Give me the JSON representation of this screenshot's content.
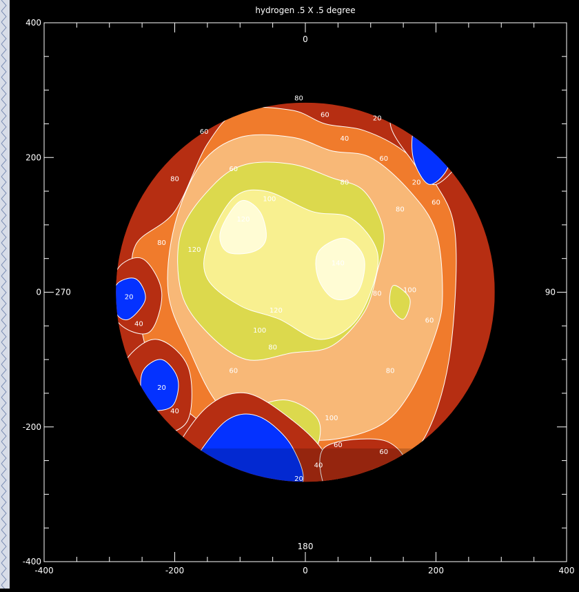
{
  "chart_data": {
    "type": "heatmap",
    "title": "hydrogen .5 X .5 degree",
    "xlim": [
      -400,
      400
    ],
    "ylim": [
      -400,
      400
    ],
    "xticks": [
      -400,
      -200,
      0,
      200,
      400
    ],
    "yticks": [
      -400,
      -200,
      0,
      200,
      400
    ],
    "grid": false,
    "direction_labels": {
      "top": "0",
      "bottom": "180",
      "left": "270",
      "right": "90"
    },
    "disk_radius": 290,
    "contour_levels": [
      20,
      40,
      60,
      80,
      100,
      120,
      140
    ],
    "color_scale": {
      "lt20": "#00219e",
      "20_40": "#0432ff",
      "40_60": "#b62e12",
      "60_80": "#f07b2c",
      "80_100": "#f8b877",
      "100_120": "#dcd94d",
      "120_140": "#f8f090",
      "gt140": "#fffcd4"
    },
    "regions": [
      {
        "level": 60,
        "points": [
          [
            -260,
            70
          ],
          [
            -200,
            120
          ],
          [
            -150,
            220
          ],
          [
            -100,
            270
          ],
          [
            -20,
            270
          ],
          [
            30,
            250
          ],
          [
            90,
            240
          ],
          [
            150,
            210
          ],
          [
            200,
            160
          ],
          [
            230,
            80
          ],
          [
            220,
            -100
          ],
          [
            180,
            -220
          ],
          [
            120,
            -260
          ],
          [
            40,
            -260
          ],
          [
            -60,
            -240
          ],
          [
            -150,
            -200
          ],
          [
            -230,
            -120
          ],
          [
            -260,
            0
          ]
        ]
      },
      {
        "level": 80,
        "points": [
          [
            -200,
            100
          ],
          [
            -160,
            190
          ],
          [
            -100,
            230
          ],
          [
            -20,
            230
          ],
          [
            40,
            210
          ],
          [
            100,
            200
          ],
          [
            160,
            150
          ],
          [
            200,
            90
          ],
          [
            210,
            0
          ],
          [
            200,
            -60
          ],
          [
            160,
            -150
          ],
          [
            110,
            -200
          ],
          [
            20,
            -220
          ],
          [
            -60,
            -200
          ],
          [
            -130,
            -170
          ],
          [
            -180,
            -80
          ],
          [
            -210,
            0
          ]
        ]
      },
      {
        "level": 100,
        "points": [
          [
            -190,
            90
          ],
          [
            -140,
            160
          ],
          [
            -90,
            190
          ],
          [
            -20,
            190
          ],
          [
            40,
            170
          ],
          [
            90,
            150
          ],
          [
            120,
            90
          ],
          [
            110,
            30
          ],
          [
            90,
            -30
          ],
          [
            40,
            -80
          ],
          [
            -20,
            -90
          ],
          [
            -90,
            -100
          ],
          [
            -150,
            -60
          ],
          [
            -190,
            0
          ]
        ]
      },
      {
        "level": 120,
        "points": [
          [
            -150,
            70
          ],
          [
            -110,
            140
          ],
          [
            -60,
            150
          ],
          [
            10,
            120
          ],
          [
            70,
            110
          ],
          [
            110,
            60
          ],
          [
            100,
            0
          ],
          [
            70,
            -50
          ],
          [
            20,
            -70
          ],
          [
            -40,
            -40
          ],
          [
            -100,
            -20
          ],
          [
            -150,
            20
          ]
        ]
      },
      {
        "level": 140,
        "points": [
          [
            -130,
            90
          ],
          [
            -100,
            135
          ],
          [
            -70,
            120
          ],
          [
            -60,
            80
          ],
          [
            -80,
            60
          ],
          [
            -120,
            60
          ]
        ]
      },
      {
        "level": 140,
        "points": [
          [
            20,
            60
          ],
          [
            60,
            80
          ],
          [
            90,
            50
          ],
          [
            80,
            0
          ],
          [
            45,
            -10
          ],
          [
            20,
            20
          ]
        ]
      },
      {
        "level": 100,
        "points": [
          [
            -90,
            -180
          ],
          [
            -30,
            -160
          ],
          [
            20,
            -190
          ],
          [
            10,
            -240
          ],
          [
            -50,
            -250
          ],
          [
            -95,
            -220
          ]
        ]
      },
      {
        "level": 100,
        "points": [
          [
            135,
            10
          ],
          [
            160,
            -10
          ],
          [
            150,
            -40
          ],
          [
            130,
            -20
          ]
        ]
      },
      {
        "level": 40,
        "points": [
          [
            -290,
            30
          ],
          [
            -250,
            50
          ],
          [
            -220,
            0
          ],
          [
            -240,
            -60
          ],
          [
            -290,
            -40
          ]
        ]
      },
      {
        "level": 20,
        "points": [
          [
            -290,
            10
          ],
          [
            -260,
            20
          ],
          [
            -245,
            -10
          ],
          [
            -270,
            -40
          ],
          [
            -290,
            -30
          ]
        ]
      },
      {
        "level": 40,
        "points": [
          [
            -280,
            -110
          ],
          [
            -230,
            -70
          ],
          [
            -180,
            -110
          ],
          [
            -180,
            -190
          ],
          [
            -230,
            -210
          ],
          [
            -280,
            -180
          ]
        ]
      },
      {
        "level": 20,
        "points": [
          [
            -250,
            -120
          ],
          [
            -220,
            -100
          ],
          [
            -195,
            -130
          ],
          [
            -205,
            -170
          ],
          [
            -245,
            -170
          ]
        ]
      },
      {
        "level": 40,
        "points": [
          [
            -200,
            -240
          ],
          [
            -150,
            -170
          ],
          [
            -90,
            -150
          ],
          [
            -20,
            -190
          ],
          [
            30,
            -240
          ],
          [
            40,
            -290
          ],
          [
            -100,
            -290
          ],
          [
            -180,
            -270
          ]
        ]
      },
      {
        "level": 20,
        "points": [
          [
            -170,
            -250
          ],
          [
            -120,
            -190
          ],
          [
            -70,
            -185
          ],
          [
            -20,
            -230
          ],
          [
            -10,
            -290
          ],
          [
            -120,
            -290
          ],
          [
            -170,
            -270
          ]
        ]
      },
      {
        "level": 40,
        "points": [
          [
            150,
            290
          ],
          [
            220,
            270
          ],
          [
            250,
            220
          ],
          [
            200,
            160
          ],
          [
            160,
            200
          ],
          [
            130,
            250
          ]
        ]
      },
      {
        "level": 20,
        "points": [
          [
            170,
            250
          ],
          [
            210,
            240
          ],
          [
            220,
            190
          ],
          [
            190,
            160
          ],
          [
            165,
            200
          ]
        ]
      },
      {
        "level": 40,
        "points": [
          [
            30,
            -230
          ],
          [
            120,
            -220
          ],
          [
            150,
            -260
          ],
          [
            60,
            -290
          ],
          [
            30,
            -290
          ]
        ]
      }
    ],
    "contour_labels": [
      {
        "text": "80",
        "x": -10,
        "y": 285
      },
      {
        "text": "60",
        "x": 30,
        "y": 260
      },
      {
        "text": "40",
        "x": 60,
        "y": 225
      },
      {
        "text": "20",
        "x": 110,
        "y": 255
      },
      {
        "text": "60",
        "x": -155,
        "y": 235
      },
      {
        "text": "60",
        "x": -110,
        "y": 180
      },
      {
        "text": "80",
        "x": -200,
        "y": 165
      },
      {
        "text": "100",
        "x": -55,
        "y": 135
      },
      {
        "text": "120",
        "x": -95,
        "y": 105
      },
      {
        "text": "80",
        "x": 60,
        "y": 160
      },
      {
        "text": "60",
        "x": 120,
        "y": 195
      },
      {
        "text": "80",
        "x": 145,
        "y": 120
      },
      {
        "text": "20",
        "x": 170,
        "y": 160
      },
      {
        "text": "60",
        "x": 200,
        "y": 130
      },
      {
        "text": "80",
        "x": -220,
        "y": 70
      },
      {
        "text": "120",
        "x": -170,
        "y": 60
      },
      {
        "text": "140",
        "x": 50,
        "y": 40
      },
      {
        "text": "80",
        "x": 110,
        "y": -5
      },
      {
        "text": "100",
        "x": 160,
        "y": 0
      },
      {
        "text": "60",
        "x": 190,
        "y": -45
      },
      {
        "text": "20",
        "x": -270,
        "y": -10
      },
      {
        "text": "40",
        "x": -255,
        "y": -50
      },
      {
        "text": "120",
        "x": -45,
        "y": -30
      },
      {
        "text": "100",
        "x": -70,
        "y": -60
      },
      {
        "text": "80",
        "x": -50,
        "y": -85
      },
      {
        "text": "60",
        "x": -110,
        "y": -120
      },
      {
        "text": "80",
        "x": 130,
        "y": -120
      },
      {
        "text": "20",
        "x": -220,
        "y": -145
      },
      {
        "text": "40",
        "x": -200,
        "y": -180
      },
      {
        "text": "100",
        "x": 40,
        "y": -190
      },
      {
        "text": "60",
        "x": 50,
        "y": -230
      },
      {
        "text": "60",
        "x": 120,
        "y": -240
      },
      {
        "text": "40",
        "x": 20,
        "y": -260
      },
      {
        "text": "20",
        "x": -10,
        "y": -280
      }
    ]
  }
}
